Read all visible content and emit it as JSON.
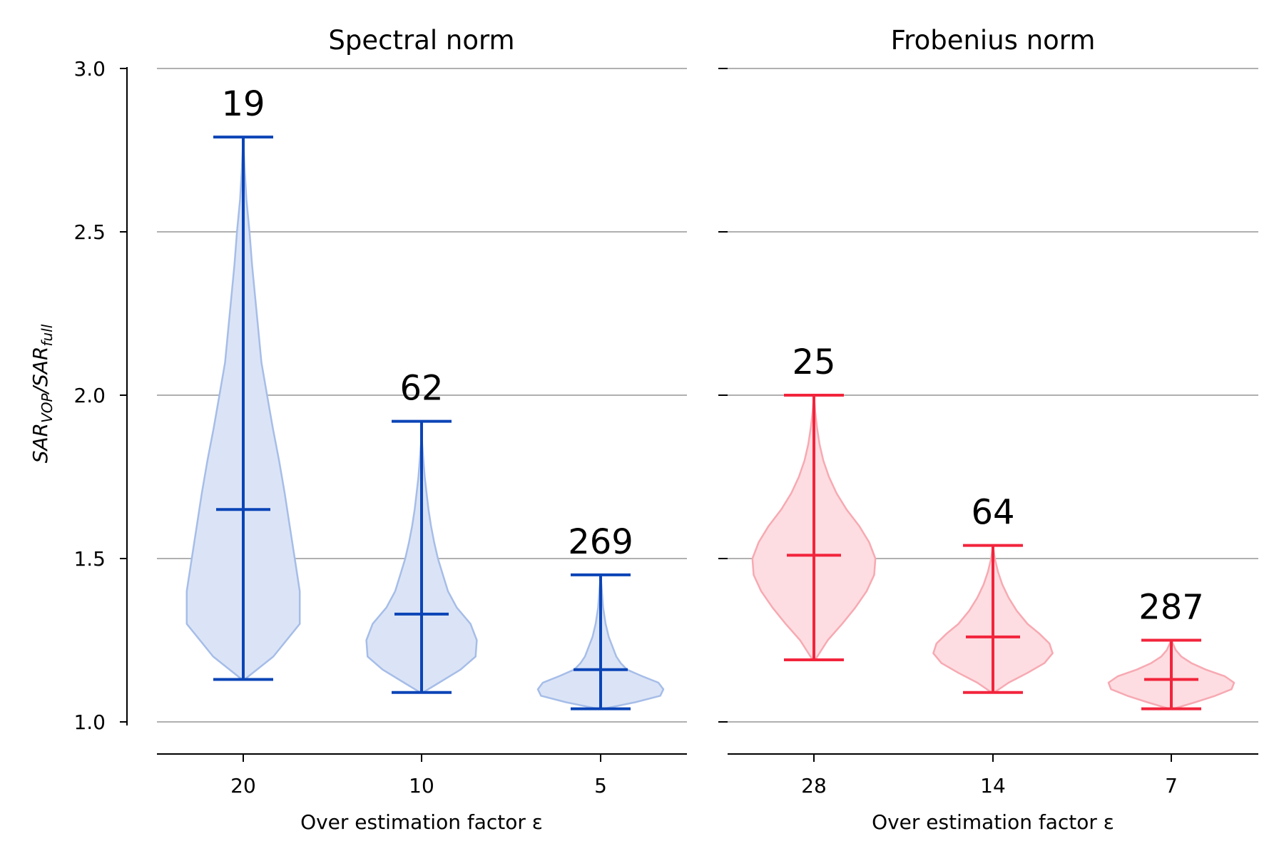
{
  "chart_data": {
    "type": "violin",
    "ylabel": {
      "main1": "SAR",
      "sub1": "VOP",
      "sep": "/",
      "main2": "SAR",
      "sub2": "full"
    },
    "ylim": [
      0.9,
      3.0
    ],
    "yticks": [
      1.0,
      1.5,
      2.0,
      2.5,
      3.0
    ],
    "ytick_labels": [
      "1.0",
      "1.5",
      "2.0",
      "2.5",
      "3.0"
    ],
    "grid": "horizontal",
    "panels": [
      {
        "title": "Spectral norm",
        "xlabel": "Over estimation factor ε",
        "color": "#0b44b6",
        "fill": "#dbe4f6",
        "edge": "#a6bde8",
        "categories": [
          "20",
          "10",
          "5"
        ],
        "counts": [
          "19",
          "62",
          "269"
        ],
        "min": [
          1.13,
          1.09,
          1.04
        ],
        "max": [
          2.79,
          1.92,
          1.45
        ],
        "mean": [
          1.65,
          1.33,
          1.16
        ],
        "density_y": [
          [
            1.13,
            1.2,
            1.3,
            1.4,
            1.5,
            1.6,
            1.7,
            1.8,
            1.9,
            2.0,
            2.1,
            2.2,
            2.3,
            2.4,
            2.5,
            2.6,
            2.7,
            2.79
          ],
          [
            1.09,
            1.12,
            1.16,
            1.2,
            1.25,
            1.3,
            1.35,
            1.4,
            1.45,
            1.5,
            1.55,
            1.6,
            1.65,
            1.7,
            1.75,
            1.8,
            1.85,
            1.92
          ],
          [
            1.04,
            1.06,
            1.08,
            1.1,
            1.12,
            1.14,
            1.16,
            1.18,
            1.2,
            1.23,
            1.26,
            1.3,
            1.35,
            1.4,
            1.45
          ]
        ],
        "density_w": [
          [
            0.02,
            0.48,
            0.9,
            0.9,
            0.82,
            0.74,
            0.66,
            0.57,
            0.47,
            0.38,
            0.29,
            0.24,
            0.19,
            0.14,
            0.1,
            0.05,
            0.02,
            0.0
          ],
          [
            0.02,
            0.28,
            0.62,
            0.86,
            0.88,
            0.78,
            0.56,
            0.42,
            0.34,
            0.26,
            0.2,
            0.15,
            0.11,
            0.08,
            0.05,
            0.03,
            0.01,
            0.0
          ],
          [
            0.04,
            0.55,
            0.95,
            1.0,
            0.92,
            0.66,
            0.42,
            0.32,
            0.25,
            0.19,
            0.13,
            0.08,
            0.04,
            0.02,
            0.0
          ]
        ]
      },
      {
        "title": "Frobenius norm",
        "xlabel": "Over estimation factor ε",
        "color": "#f2243c",
        "fill": "#fddde1",
        "edge": "#f7a9b2",
        "categories": [
          "28",
          "14",
          "7"
        ],
        "counts": [
          "25",
          "64",
          "287"
        ],
        "min": [
          1.19,
          1.09,
          1.04
        ],
        "max": [
          2.0,
          1.54,
          1.25
        ],
        "mean": [
          1.51,
          1.26,
          1.13
        ],
        "density_y": [
          [
            1.19,
            1.25,
            1.3,
            1.35,
            1.4,
            1.45,
            1.5,
            1.55,
            1.6,
            1.65,
            1.7,
            1.75,
            1.8,
            1.85,
            1.9,
            1.95,
            2.0
          ],
          [
            1.09,
            1.12,
            1.15,
            1.18,
            1.21,
            1.24,
            1.27,
            1.3,
            1.34,
            1.38,
            1.42,
            1.46,
            1.5,
            1.54
          ],
          [
            1.04,
            1.06,
            1.08,
            1.1,
            1.12,
            1.14,
            1.16,
            1.18,
            1.2,
            1.22,
            1.25
          ]
        ],
        "density_w": [
          [
            0.02,
            0.22,
            0.45,
            0.66,
            0.84,
            0.96,
            0.98,
            0.88,
            0.72,
            0.52,
            0.36,
            0.24,
            0.15,
            0.09,
            0.05,
            0.02,
            0.0
          ],
          [
            0.02,
            0.25,
            0.55,
            0.82,
            0.95,
            0.9,
            0.74,
            0.55,
            0.38,
            0.25,
            0.15,
            0.08,
            0.03,
            0.0
          ],
          [
            0.03,
            0.38,
            0.7,
            0.96,
            1.0,
            0.85,
            0.55,
            0.32,
            0.16,
            0.07,
            0.0
          ]
        ]
      }
    ]
  }
}
